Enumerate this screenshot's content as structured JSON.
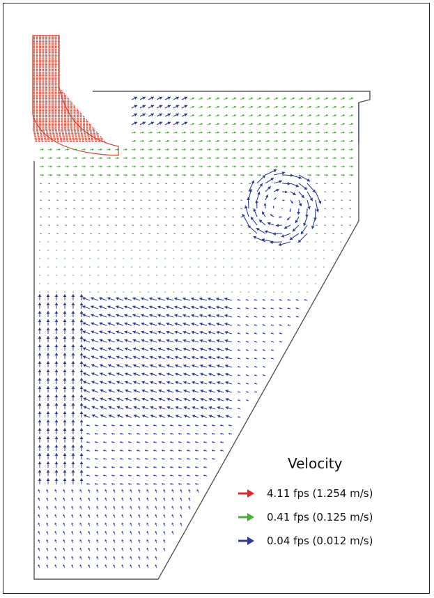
{
  "legend": {
    "title": "Velocity",
    "items": [
      {
        "label": "4.11 fps (1.254 m/s)",
        "color": "#e8242a",
        "icon": "arrow-right-icon"
      },
      {
        "label": "0.41 fps (0.125 m/s)",
        "color": "#4caf3c",
        "icon": "arrow-right-icon"
      },
      {
        "label": "0.04 fps (0.012 m/s)",
        "color": "#2b3a9a",
        "icon": "arrow-right-icon"
      }
    ]
  },
  "colors": {
    "outline": "#555555",
    "inlet": "#d2432e",
    "medium": "#4caf3c",
    "low": "#2b3a9a"
  }
}
